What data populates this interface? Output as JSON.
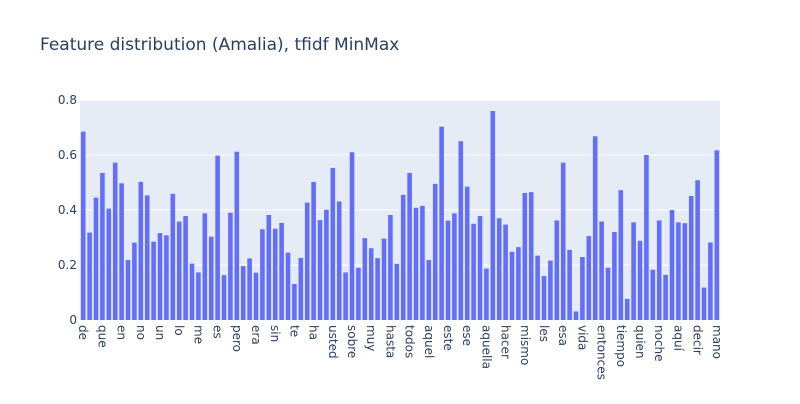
{
  "chart_data": {
    "type": "bar",
    "title": "Feature distribution (Amalia), tfidf MinMax",
    "xlabel": "",
    "ylabel": "",
    "ylim": [
      0,
      0.8
    ],
    "yticks": [
      0,
      0.2,
      0.4,
      0.6,
      0.8
    ],
    "ytick_labels": [
      "0",
      "0.2",
      "0.4",
      "0.6",
      "0.8"
    ],
    "grid": true,
    "colors": {
      "bar": "#636efa",
      "plot_bg": "#e5ecf6",
      "paper_bg": "#ffffff",
      "text": "#2a3f5f"
    },
    "xtick_labels": [
      "de",
      "que",
      "en",
      "no",
      "un",
      "lo",
      "me",
      "es",
      "pero",
      "era",
      "sin",
      "te",
      "ha",
      "usted",
      "sobre",
      "muy",
      "hasta",
      "todos",
      "aquel",
      "este",
      "ese",
      "aquella",
      "hacer",
      "mismo",
      "les",
      "esa",
      "vida",
      "entonces",
      "tiempo",
      "quien",
      "noche",
      "aquí",
      "decir",
      "mano"
    ],
    "values": [
      0.685,
      0.318,
      0.445,
      0.535,
      0.405,
      0.572,
      0.497,
      0.218,
      0.281,
      0.502,
      0.453,
      0.285,
      0.316,
      0.308,
      0.459,
      0.358,
      0.378,
      0.205,
      0.173,
      0.388,
      0.303,
      0.598,
      0.163,
      0.39,
      0.612,
      0.196,
      0.224,
      0.172,
      0.33,
      0.382,
      0.332,
      0.353,
      0.245,
      0.131,
      0.226,
      0.427,
      0.502,
      0.363,
      0.401,
      0.553,
      0.431,
      0.173,
      0.61,
      0.19,
      0.298,
      0.261,
      0.225,
      0.296,
      0.382,
      0.204,
      0.455,
      0.535,
      0.408,
      0.415,
      0.218,
      0.495,
      0.703,
      0.361,
      0.388,
      0.65,
      0.485,
      0.35,
      0.378,
      0.187,
      0.76,
      0.37,
      0.347,
      0.248,
      0.265,
      0.462,
      0.465,
      0.234,
      0.16,
      0.216,
      0.362,
      0.572,
      0.255,
      0.031,
      0.229,
      0.305,
      0.668,
      0.358,
      0.19,
      0.32,
      0.472,
      0.077,
      0.355,
      0.288,
      0.6,
      0.183,
      0.362,
      0.164,
      0.4,
      0.355,
      0.352,
      0.451,
      0.508,
      0.118,
      0.282,
      0.617
    ]
  }
}
